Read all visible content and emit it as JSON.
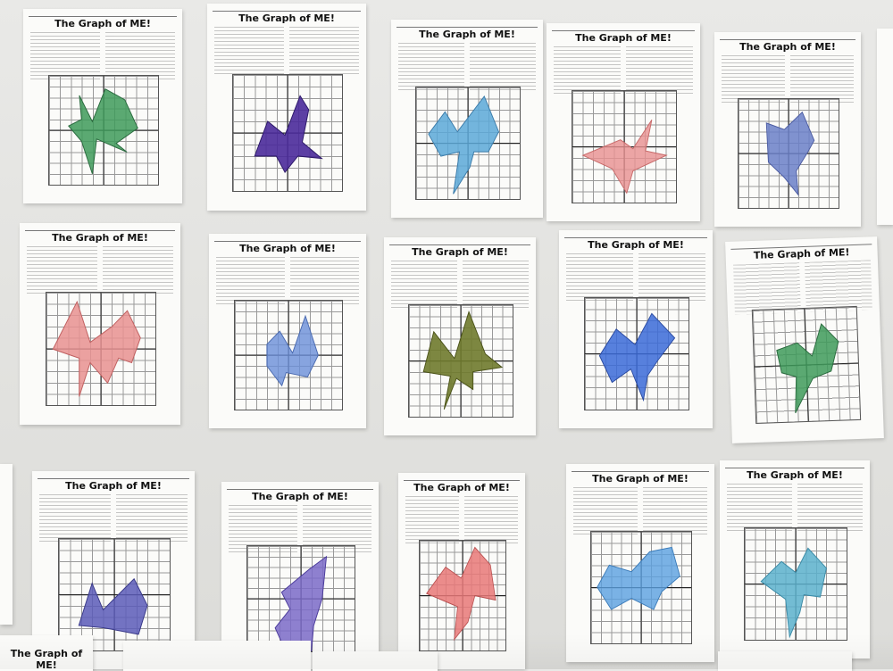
{
  "worksheet_title": "The Graph of ME!",
  "colors": {
    "green": "#3e9a5a",
    "purple": "#4a2a9a",
    "blue": "#5aa8d8",
    "pink": "#e89090",
    "slate_blue": "#6a7fc8",
    "olive": "#6f7a2c",
    "violet": "#7a6ac8",
    "teal": "#5ab0cc"
  },
  "sheets": [
    {
      "name": "sheet-1",
      "color": "green"
    },
    {
      "name": "sheet-2",
      "color": "purple"
    },
    {
      "name": "sheet-3",
      "color": "blue"
    },
    {
      "name": "sheet-4",
      "color": "pink"
    },
    {
      "name": "sheet-5",
      "color": "slate_blue"
    },
    {
      "name": "sheet-6",
      "color": "pink"
    },
    {
      "name": "sheet-7",
      "color": "slate_blue"
    },
    {
      "name": "sheet-8",
      "color": "olive"
    },
    {
      "name": "sheet-9",
      "color": "slate_blue"
    },
    {
      "name": "sheet-10",
      "color": "green"
    },
    {
      "name": "sheet-11",
      "color": "violet"
    },
    {
      "name": "sheet-12",
      "color": "violet"
    },
    {
      "name": "sheet-13",
      "color": "pink"
    },
    {
      "name": "sheet-14",
      "color": "blue"
    },
    {
      "name": "sheet-15",
      "color": "teal"
    }
  ]
}
